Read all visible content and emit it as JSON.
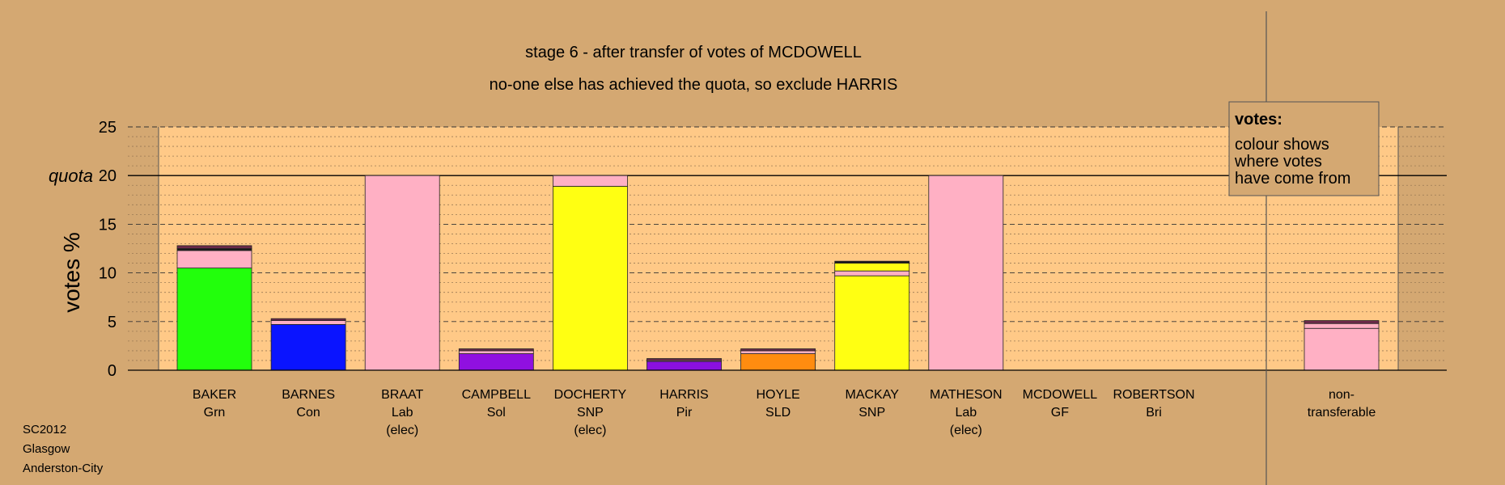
{
  "titles": {
    "line1": "stage 6 - after transfer of votes of MCDOWELL",
    "line2": "no-one else has achieved the quota, so exclude HARRIS"
  },
  "axis": {
    "ylabel": "votes %",
    "quota_label": "quota"
  },
  "legend": {
    "title": "votes:",
    "lines": [
      "colour shows",
      "where votes",
      "have come from"
    ]
  },
  "corner": {
    "lines": [
      "SC2012",
      "Glasgow",
      "Anderston-City"
    ]
  },
  "colors": {
    "background": "#d4a872",
    "plot": "#ffc987",
    "Grn": "#22ff0c",
    "Con": "#0a14ff",
    "Lab": "#ffb0c4",
    "Sol": "#9010e0",
    "SNP": "#ffff12",
    "Pir": "#8a10e0",
    "SLD": "#ff8c10",
    "GF": "#6b2a4a",
    "Bri": "#1a1a1a"
  },
  "chart_data": {
    "type": "bar",
    "stacked": true,
    "ylim": [
      0,
      25
    ],
    "yticks": [
      0,
      5,
      10,
      15,
      20,
      25
    ],
    "quota": 20,
    "grid": true,
    "legend_position": "top-right",
    "candidates": [
      {
        "name": "BAKER",
        "party": "Grn",
        "note": "",
        "segments": [
          {
            "from": "Grn",
            "value": 10.5
          },
          {
            "from": "Lab",
            "value": 1.8
          },
          {
            "from": "Bri",
            "value": 0.2
          },
          {
            "from": "GF",
            "value": 0.3
          }
        ]
      },
      {
        "name": "BARNES",
        "party": "Con",
        "note": "",
        "segments": [
          {
            "from": "Con",
            "value": 4.7
          },
          {
            "from": "Lab",
            "value": 0.4
          },
          {
            "from": "GF",
            "value": 0.2
          }
        ]
      },
      {
        "name": "BRAAT",
        "party": "Lab",
        "note": "(elec)",
        "segments": [
          {
            "from": "Lab",
            "value": 20.0
          }
        ]
      },
      {
        "name": "CAMPBELL",
        "party": "Sol",
        "note": "",
        "segments": [
          {
            "from": "Sol",
            "value": 1.7
          },
          {
            "from": "Lab",
            "value": 0.3
          },
          {
            "from": "GF",
            "value": 0.2
          }
        ]
      },
      {
        "name": "DOCHERTY",
        "party": "SNP",
        "note": "(elec)",
        "segments": [
          {
            "from": "SNP",
            "value": 18.9
          },
          {
            "from": "Lab",
            "value": 1.1
          }
        ]
      },
      {
        "name": "HARRIS",
        "party": "Pir",
        "note": "",
        "segments": [
          {
            "from": "Pir",
            "value": 0.9
          },
          {
            "from": "Lab",
            "value": 0.1
          },
          {
            "from": "GF",
            "value": 0.2
          }
        ]
      },
      {
        "name": "HOYLE",
        "party": "SLD",
        "note": "",
        "segments": [
          {
            "from": "SLD",
            "value": 1.7
          },
          {
            "from": "Lab",
            "value": 0.3
          },
          {
            "from": "GF",
            "value": 0.2
          }
        ]
      },
      {
        "name": "MACKAY",
        "party": "SNP",
        "note": "",
        "segments": [
          {
            "from": "SNP",
            "value": 9.7
          },
          {
            "from": "Lab",
            "value": 0.5
          },
          {
            "from": "SNP",
            "value": 0.8
          },
          {
            "from": "Bri",
            "value": 0.2
          }
        ]
      },
      {
        "name": "MATHESON",
        "party": "Lab",
        "note": "(elec)",
        "segments": [
          {
            "from": "Lab",
            "value": 20.0
          }
        ]
      },
      {
        "name": "MCDOWELL",
        "party": "GF",
        "note": "",
        "segments": []
      },
      {
        "name": "ROBERTSON",
        "party": "Bri",
        "note": "",
        "segments": []
      }
    ],
    "nontransferable": {
      "label_lines": [
        "non-",
        "transferable"
      ],
      "segments": [
        {
          "from": "Lab",
          "value": 4.3
        },
        {
          "from": "Lab",
          "value": 0.5
        },
        {
          "from": "GF",
          "value": 0.3
        }
      ]
    }
  }
}
